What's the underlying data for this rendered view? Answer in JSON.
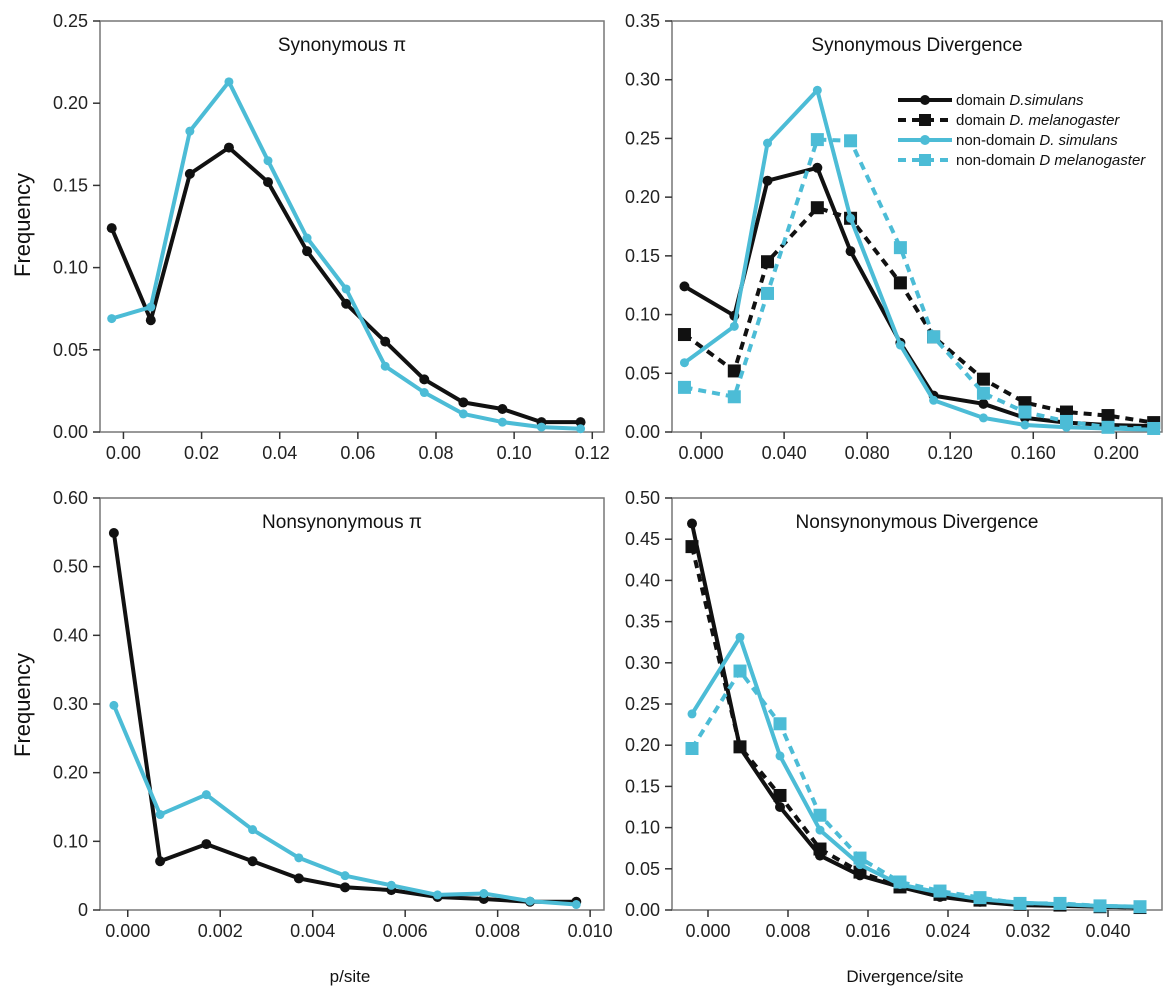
{
  "colors": {
    "domain": "#111111",
    "nondomain": "#4cbcd6",
    "frame": "#777777"
  },
  "legend": [
    {
      "prefix": "domain ",
      "species": "D.simulans",
      "color": "#111111",
      "dashed": false,
      "marker": "circle"
    },
    {
      "prefix": "domain ",
      "species": "D. melanogaster",
      "color": "#111111",
      "dashed": true,
      "marker": "square"
    },
    {
      "prefix": "non-domain ",
      "species": "D. simulans",
      "color": "#4cbcd6",
      "dashed": false,
      "marker": "circle"
    },
    {
      "prefix": "non-domain ",
      "species": "D melanogaster",
      "color": "#4cbcd6",
      "dashed": true,
      "marker": "square"
    }
  ],
  "chart_data": [
    {
      "id": "syn-pi",
      "type": "line",
      "title": "Synonymous π",
      "ylabel": "Frequency",
      "xlabel": "",
      "xlim": [
        -0.006,
        0.123
      ],
      "ylim": [
        0,
        0.25
      ],
      "xticks": [
        0.0,
        0.02,
        0.04,
        0.06,
        0.08,
        0.1,
        0.12
      ],
      "xtick_labels": [
        "0.00",
        "0.02",
        "0.04",
        "0.06",
        "0.08",
        "0.10",
        "0.12"
      ],
      "yticks": [
        0,
        0.05,
        0.1,
        0.15,
        0.2,
        0.25
      ],
      "ytick_labels": [
        "0.00",
        "0.05",
        "0.10",
        "0.15",
        "0.20",
        "0.25"
      ],
      "series": [
        {
          "style": "domain-simulans",
          "x": [
            -0.003,
            0.007,
            0.017,
            0.027,
            0.037,
            0.047,
            0.057,
            0.067,
            0.077,
            0.087,
            0.097,
            0.107,
            0.117
          ],
          "y": [
            0.124,
            0.068,
            0.157,
            0.173,
            0.152,
            0.11,
            0.078,
            0.055,
            0.032,
            0.018,
            0.014,
            0.006,
            0.006
          ]
        },
        {
          "style": "nondomain-simulans",
          "x": [
            -0.003,
            0.007,
            0.017,
            0.027,
            0.037,
            0.047,
            0.057,
            0.067,
            0.077,
            0.087,
            0.097,
            0.107,
            0.117
          ],
          "y": [
            0.069,
            0.076,
            0.183,
            0.213,
            0.165,
            0.118,
            0.087,
            0.04,
            0.024,
            0.011,
            0.006,
            0.003,
            0.002
          ]
        }
      ]
    },
    {
      "id": "syn-div",
      "type": "line",
      "title": "Synonymous Divergence",
      "ylabel": "",
      "xlabel": "",
      "xlim": [
        -0.014,
        0.222
      ],
      "ylim": [
        0,
        0.35
      ],
      "xticks": [
        0.0,
        0.04,
        0.08,
        0.12,
        0.16,
        0.2
      ],
      "xtick_labels": [
        "0.000",
        "0.040",
        "0.080",
        "0.120",
        "0.160",
        "0.200"
      ],
      "yticks": [
        0,
        0.05,
        0.1,
        0.15,
        0.2,
        0.25,
        0.3,
        0.35
      ],
      "ytick_labels": [
        "0.00",
        "0.05",
        "0.10",
        "0.15",
        "0.20",
        "0.25",
        "0.30",
        "0.35"
      ],
      "show_legend": true,
      "series": [
        {
          "style": "domain-simulans",
          "x": [
            -0.008,
            0.016,
            0.032,
            0.056,
            0.072,
            0.096,
            0.112,
            0.136,
            0.156,
            0.176,
            0.196,
            0.218
          ],
          "y": [
            0.124,
            0.099,
            0.214,
            0.225,
            0.154,
            0.076,
            0.031,
            0.024,
            0.012,
            0.008,
            0.006,
            0.005
          ]
        },
        {
          "style": "domain-melanogaster",
          "x": [
            -0.008,
            0.016,
            0.032,
            0.056,
            0.072,
            0.096,
            0.112,
            0.136,
            0.156,
            0.176,
            0.196,
            0.218
          ],
          "y": [
            0.083,
            0.052,
            0.145,
            0.191,
            0.182,
            0.127,
            0.081,
            0.045,
            0.025,
            0.017,
            0.014,
            0.008
          ]
        },
        {
          "style": "nondomain-simulans",
          "x": [
            -0.008,
            0.016,
            0.032,
            0.056,
            0.072,
            0.096,
            0.112,
            0.136,
            0.156,
            0.176,
            0.196,
            0.218
          ],
          "y": [
            0.059,
            0.09,
            0.246,
            0.291,
            0.182,
            0.074,
            0.027,
            0.012,
            0.006,
            0.004,
            0.003,
            0.002
          ]
        },
        {
          "style": "nondomain-melanogaster",
          "x": [
            -0.008,
            0.016,
            0.032,
            0.056,
            0.072,
            0.096,
            0.112,
            0.136,
            0.156,
            0.176,
            0.196,
            0.218
          ],
          "y": [
            0.038,
            0.03,
            0.118,
            0.249,
            0.248,
            0.157,
            0.081,
            0.033,
            0.017,
            0.009,
            0.004,
            0.003
          ]
        }
      ]
    },
    {
      "id": "nonsyn-pi",
      "type": "line",
      "title": "Nonsynonymous π",
      "ylabel": "Frequency",
      "xlabel": "p/site",
      "xlim": [
        -0.0006,
        0.0103
      ],
      "ylim": [
        0,
        0.6
      ],
      "xticks": [
        0.0,
        0.002,
        0.004,
        0.006,
        0.008,
        0.01
      ],
      "xtick_labels": [
        "0.000",
        "0.002",
        "0.004",
        "0.006",
        "0.008",
        "0.010"
      ],
      "yticks": [
        0,
        0.1,
        0.2,
        0.3,
        0.4,
        0.5,
        0.6
      ],
      "ytick_labels": [
        "0",
        "0.10",
        "0.20",
        "0.30",
        "0.40",
        "0.50",
        "0.60"
      ],
      "series": [
        {
          "style": "domain-simulans",
          "x": [
            -0.0003,
            0.0007,
            0.0017,
            0.0027,
            0.0037,
            0.0047,
            0.0057,
            0.0067,
            0.0077,
            0.0087,
            0.0097
          ],
          "y": [
            0.549,
            0.071,
            0.096,
            0.071,
            0.046,
            0.033,
            0.029,
            0.019,
            0.016,
            0.012,
            0.012
          ]
        },
        {
          "style": "nondomain-simulans",
          "x": [
            -0.0003,
            0.0007,
            0.0017,
            0.0027,
            0.0037,
            0.0047,
            0.0057,
            0.0067,
            0.0077,
            0.0087,
            0.0097
          ],
          "y": [
            0.298,
            0.139,
            0.168,
            0.117,
            0.076,
            0.05,
            0.036,
            0.022,
            0.024,
            0.013,
            0.008
          ]
        }
      ]
    },
    {
      "id": "nonsyn-div",
      "type": "line",
      "title": "Nonsynonymous Divergence",
      "ylabel": "",
      "xlabel": "Divergence/site",
      "xlim": [
        -0.0036,
        0.0454
      ],
      "ylim": [
        0,
        0.5
      ],
      "xticks": [
        0.0,
        0.008,
        0.016,
        0.024,
        0.032,
        0.04
      ],
      "xtick_labels": [
        "0.000",
        "0.008",
        "0.016",
        "0.024",
        "0.032",
        "0.040"
      ],
      "yticks": [
        0,
        0.05,
        0.1,
        0.15,
        0.2,
        0.25,
        0.3,
        0.35,
        0.4,
        0.45,
        0.5
      ],
      "ytick_labels": [
        "0.00",
        "0.05",
        "0.10",
        "0.15",
        "0.20",
        "0.25",
        "0.30",
        "0.35",
        "0.40",
        "0.45",
        "0.50"
      ],
      "series": [
        {
          "style": "domain-simulans",
          "x": [
            -0.0016,
            0.0032,
            0.0072,
            0.0112,
            0.0152,
            0.0192,
            0.0232,
            0.0272,
            0.0312,
            0.0352,
            0.0392,
            0.0432
          ],
          "y": [
            0.469,
            0.197,
            0.125,
            0.066,
            0.042,
            0.028,
            0.016,
            0.01,
            0.006,
            0.005,
            0.004,
            0.003
          ]
        },
        {
          "style": "domain-melanogaster",
          "x": [
            -0.0016,
            0.0032,
            0.0072,
            0.0112,
            0.0152,
            0.0192,
            0.0232,
            0.0272,
            0.0312,
            0.0352,
            0.0392,
            0.0432
          ],
          "y": [
            0.441,
            0.198,
            0.139,
            0.074,
            0.046,
            0.028,
            0.019,
            0.012,
            0.007,
            0.006,
            0.004,
            0.003
          ]
        },
        {
          "style": "nondomain-simulans",
          "x": [
            -0.0016,
            0.0032,
            0.0072,
            0.0112,
            0.0152,
            0.0192,
            0.0232,
            0.0272,
            0.0312,
            0.0352,
            0.0392,
            0.0432
          ],
          "y": [
            0.238,
            0.331,
            0.187,
            0.097,
            0.055,
            0.031,
            0.021,
            0.013,
            0.009,
            0.007,
            0.005,
            0.004
          ]
        },
        {
          "style": "nondomain-melanogaster",
          "x": [
            -0.0016,
            0.0032,
            0.0072,
            0.0112,
            0.0152,
            0.0192,
            0.0232,
            0.0272,
            0.0312,
            0.0352,
            0.0392,
            0.0432
          ],
          "y": [
            0.196,
            0.29,
            0.226,
            0.115,
            0.063,
            0.034,
            0.023,
            0.015,
            0.008,
            0.008,
            0.005,
            0.004
          ]
        }
      ]
    }
  ]
}
